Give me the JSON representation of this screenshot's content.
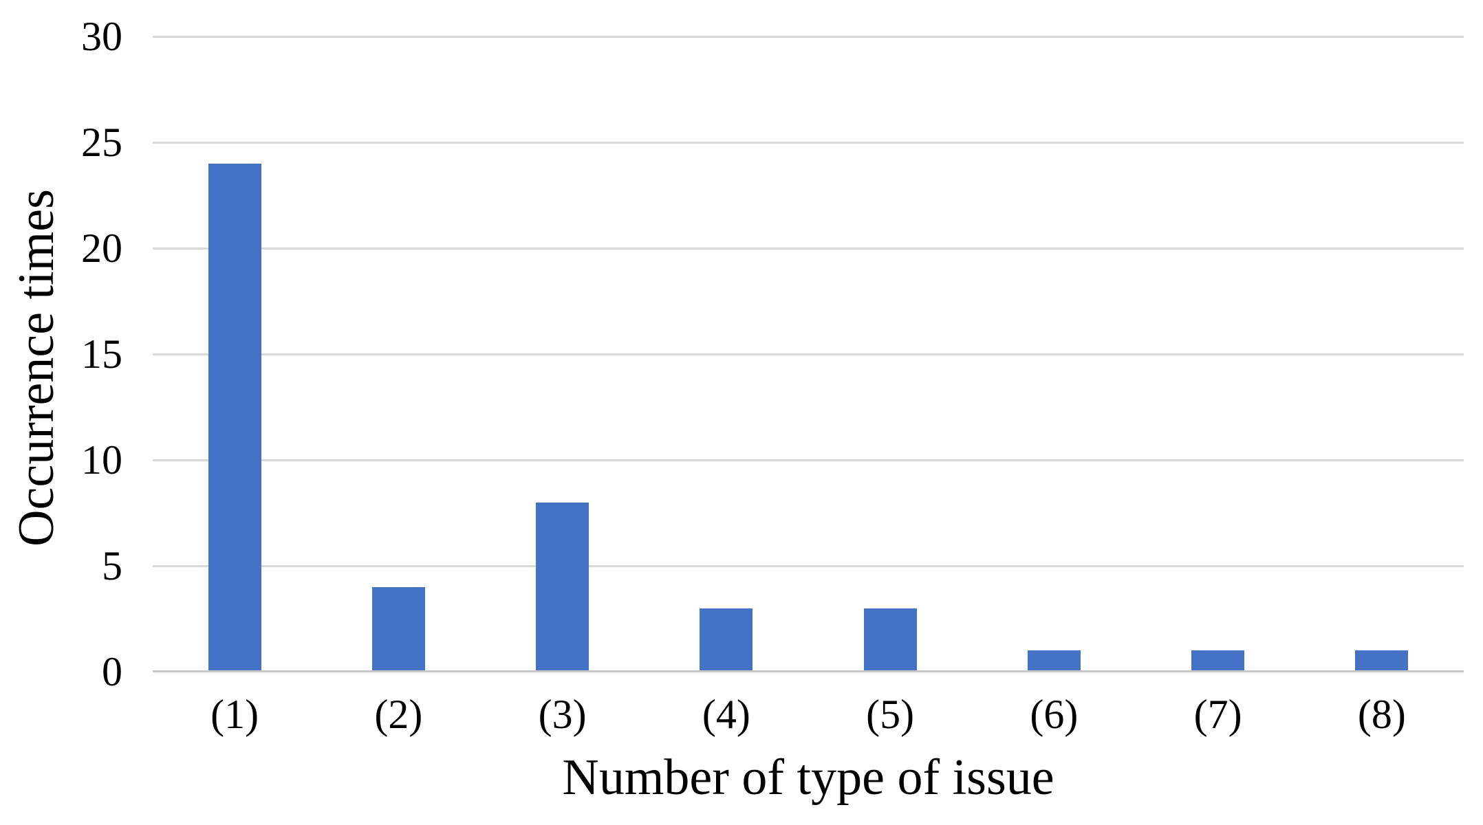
{
  "chart_data": {
    "type": "bar",
    "categories": [
      "(1)",
      "(2)",
      "(3)",
      "(4)",
      "(5)",
      "(6)",
      "(7)",
      "(8)"
    ],
    "values": [
      24,
      4,
      8,
      3,
      3,
      1,
      1,
      1
    ],
    "title": "",
    "xlabel": "Number of type of issue",
    "ylabel": "Occurrence times",
    "ylim": [
      0,
      30
    ],
    "yticks": [
      30,
      25,
      20,
      15,
      10,
      5,
      0
    ],
    "grid": "horizontal-only",
    "legend_position": "none",
    "bar_color": "#4472C4",
    "gridline_color": "#D9D9D9",
    "axis_line_color": "#C8C8C8",
    "text_color": "#000000",
    "background_color": "#FFFFFF"
  }
}
